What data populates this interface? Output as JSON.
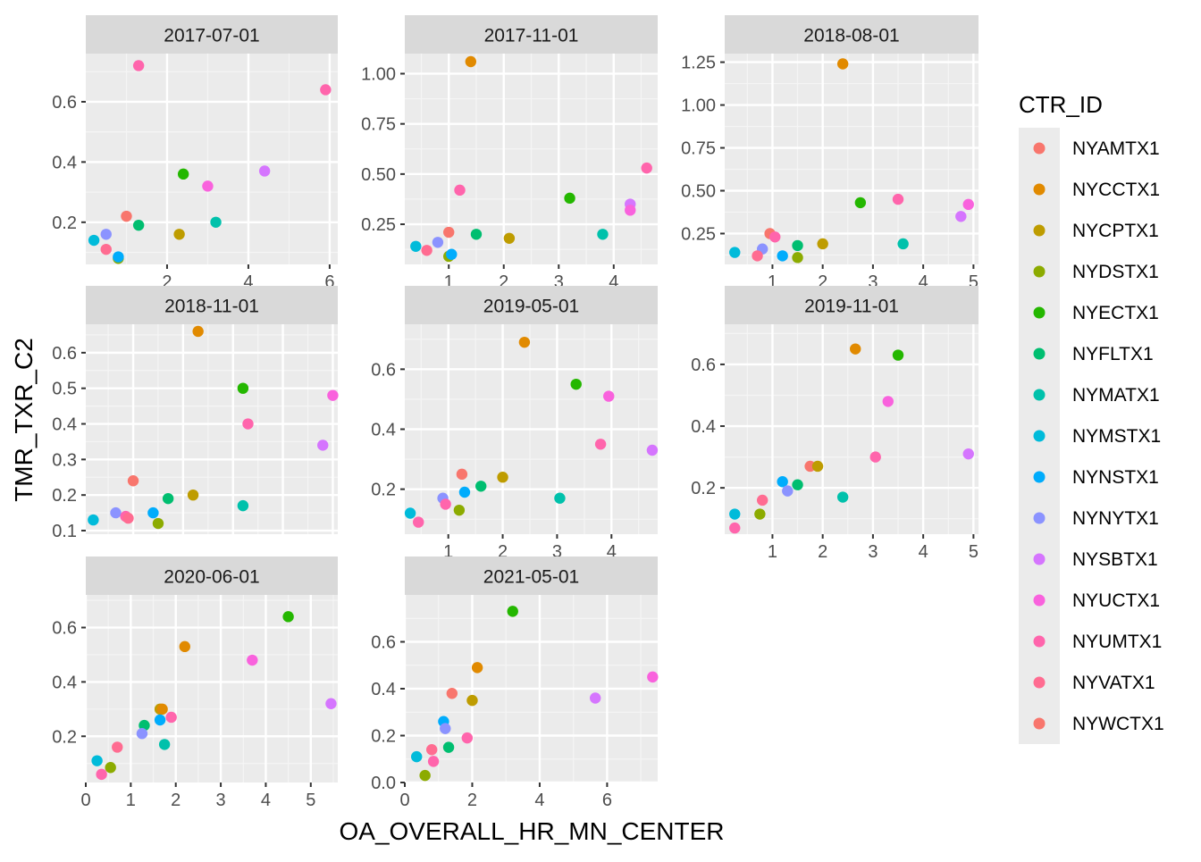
{
  "chart_data": {
    "type": "scatter",
    "xlabel": "OA_OVERALL_HR_MN_CENTER",
    "ylabel": "TMR_TXR_C2",
    "grid": true,
    "legend": {
      "title": "CTR_ID",
      "placement": "right",
      "entries": [
        {
          "id": "NYAMTX1",
          "color": "#F8766D"
        },
        {
          "id": "NYCCTX1",
          "color": "#E18A00"
        },
        {
          "id": "NYCPTX1",
          "color": "#BE9C00"
        },
        {
          "id": "NYDSTX1",
          "color": "#8CAB00"
        },
        {
          "id": "NYECTX1",
          "color": "#24B700"
        },
        {
          "id": "NYFLTX1",
          "color": "#00BE70"
        },
        {
          "id": "NYMATX1",
          "color": "#00C1AB"
        },
        {
          "id": "NYMSTX1",
          "color": "#00BBDA"
        },
        {
          "id": "NYNSTX1",
          "color": "#00ACFC"
        },
        {
          "id": "NYNYTX1",
          "color": "#8B93FF"
        },
        {
          "id": "NYSBTX1",
          "color": "#D575FE"
        },
        {
          "id": "NYUCTX1",
          "color": "#F962DD"
        },
        {
          "id": "NYUMTX1",
          "color": "#FF65AC"
        },
        {
          "id": "NYVATX1",
          "color": "#FF6C91"
        },
        {
          "id": "NYWCTX1",
          "color": "#F8766D"
        }
      ]
    },
    "facets": [
      {
        "label": "2017-07-01",
        "xlim": [
          0,
          6.2
        ],
        "ylim": [
          0.06,
          0.76
        ],
        "xticks": [
          2,
          4,
          6
        ],
        "xtick_labels": [
          "2",
          "4",
          "6"
        ],
        "yticks": [
          0.2,
          0.4,
          0.6
        ],
        "ytick_labels": [
          "0.2",
          "0.4",
          "0.6"
        ],
        "points": [
          {
            "x": 1.3,
            "y": 0.72,
            "c": "NYUMTX1"
          },
          {
            "x": 5.9,
            "y": 0.64,
            "c": "NYUMTX1"
          },
          {
            "x": 4.4,
            "y": 0.37,
            "c": "NYSBTX1"
          },
          {
            "x": 2.4,
            "y": 0.36,
            "c": "NYECTX1"
          },
          {
            "x": 3.0,
            "y": 0.32,
            "c": "NYUCTX1"
          },
          {
            "x": 1.0,
            "y": 0.22,
            "c": "NYAMTX1"
          },
          {
            "x": 3.2,
            "y": 0.2,
            "c": "NYMATX1"
          },
          {
            "x": 1.3,
            "y": 0.19,
            "c": "NYFLTX1"
          },
          {
            "x": 0.5,
            "y": 0.16,
            "c": "NYNYTX1"
          },
          {
            "x": 2.3,
            "y": 0.16,
            "c": "NYCPTX1"
          },
          {
            "x": 0.2,
            "y": 0.14,
            "c": "NYMSTX1"
          },
          {
            "x": 0.5,
            "y": 0.11,
            "c": "NYVATX1"
          },
          {
            "x": 0.8,
            "y": 0.08,
            "c": "NYDSTX1"
          },
          {
            "x": 0.8,
            "y": 0.085,
            "c": "NYNSTX1"
          }
        ]
      },
      {
        "label": "2017-11-01",
        "xlim": [
          0.2,
          4.8
        ],
        "ylim": [
          0.05,
          1.1
        ],
        "xticks": [
          1,
          2,
          3,
          4
        ],
        "xtick_labels": [
          "1",
          "2",
          "3",
          "4"
        ],
        "yticks": [
          0.25,
          0.5,
          0.75,
          1.0
        ],
        "ytick_labels": [
          "0.25",
          "0.50",
          "0.75",
          "1.00"
        ],
        "points": [
          {
            "x": 1.4,
            "y": 1.06,
            "c": "NYCCTX1"
          },
          {
            "x": 4.6,
            "y": 0.53,
            "c": "NYUMTX1"
          },
          {
            "x": 1.2,
            "y": 0.42,
            "c": "NYUMTX1"
          },
          {
            "x": 3.2,
            "y": 0.38,
            "c": "NYECTX1"
          },
          {
            "x": 4.3,
            "y": 0.35,
            "c": "NYSBTX1"
          },
          {
            "x": 4.3,
            "y": 0.32,
            "c": "NYUCTX1"
          },
          {
            "x": 1.0,
            "y": 0.21,
            "c": "NYAMTX1"
          },
          {
            "x": 1.5,
            "y": 0.2,
            "c": "NYFLTX1"
          },
          {
            "x": 3.8,
            "y": 0.2,
            "c": "NYMATX1"
          },
          {
            "x": 2.1,
            "y": 0.18,
            "c": "NYCPTX1"
          },
          {
            "x": 0.8,
            "y": 0.16,
            "c": "NYNYTX1"
          },
          {
            "x": 0.4,
            "y": 0.14,
            "c": "NYMSTX1"
          },
          {
            "x": 0.6,
            "y": 0.12,
            "c": "NYVATX1"
          },
          {
            "x": 1.0,
            "y": 0.09,
            "c": "NYDSTX1"
          },
          {
            "x": 1.05,
            "y": 0.1,
            "c": "NYNSTX1"
          }
        ]
      },
      {
        "label": "2018-08-01",
        "xlim": [
          0.05,
          5.1
        ],
        "ylim": [
          0.07,
          1.3
        ],
        "xticks": [
          1,
          2,
          3,
          4,
          5
        ],
        "xtick_labels": [
          "1",
          "2",
          "3",
          "4",
          "5"
        ],
        "yticks": [
          0.25,
          0.5,
          0.75,
          1.0,
          1.25
        ],
        "ytick_labels": [
          "0.25",
          "0.50",
          "0.75",
          "1.00",
          "1.25"
        ],
        "points": [
          {
            "x": 2.4,
            "y": 1.24,
            "c": "NYCCTX1"
          },
          {
            "x": 3.5,
            "y": 0.45,
            "c": "NYUMTX1"
          },
          {
            "x": 2.75,
            "y": 0.43,
            "c": "NYECTX1"
          },
          {
            "x": 4.9,
            "y": 0.42,
            "c": "NYUCTX1"
          },
          {
            "x": 4.75,
            "y": 0.35,
            "c": "NYSBTX1"
          },
          {
            "x": 0.95,
            "y": 0.25,
            "c": "NYAMTX1"
          },
          {
            "x": 1.05,
            "y": 0.23,
            "c": "NYUMTX1"
          },
          {
            "x": 2.0,
            "y": 0.19,
            "c": "NYCPTX1"
          },
          {
            "x": 3.6,
            "y": 0.19,
            "c": "NYMATX1"
          },
          {
            "x": 1.5,
            "y": 0.18,
            "c": "NYFLTX1"
          },
          {
            "x": 0.8,
            "y": 0.16,
            "c": "NYNYTX1"
          },
          {
            "x": 0.25,
            "y": 0.14,
            "c": "NYMSTX1"
          },
          {
            "x": 0.7,
            "y": 0.12,
            "c": "NYVATX1"
          },
          {
            "x": 1.2,
            "y": 0.12,
            "c": "NYNSTX1"
          },
          {
            "x": 1.5,
            "y": 0.11,
            "c": "NYDSTX1"
          }
        ]
      },
      {
        "label": "2018-11-01",
        "xlim": [
          0.05,
          5.1
        ],
        "ylim": [
          0.09,
          0.68
        ],
        "xticks": [
          1,
          2,
          3,
          4,
          5
        ],
        "xtick_labels": [
          "1",
          "2",
          "3",
          "4",
          "5"
        ],
        "yticks": [
          0.1,
          0.2,
          0.3,
          0.4,
          0.5,
          0.6
        ],
        "ytick_labels": [
          "0.1",
          "0.2",
          "0.3",
          "0.4",
          "0.5",
          "0.6"
        ],
        "points": [
          {
            "x": 2.3,
            "y": 0.66,
            "c": "NYCCTX1"
          },
          {
            "x": 3.2,
            "y": 0.5,
            "c": "NYECTX1"
          },
          {
            "x": 5.0,
            "y": 0.48,
            "c": "NYUCTX1"
          },
          {
            "x": 3.3,
            "y": 0.4,
            "c": "NYUMTX1"
          },
          {
            "x": 4.8,
            "y": 0.34,
            "c": "NYSBTX1"
          },
          {
            "x": 1.0,
            "y": 0.24,
            "c": "NYAMTX1"
          },
          {
            "x": 2.2,
            "y": 0.2,
            "c": "NYCPTX1"
          },
          {
            "x": 1.7,
            "y": 0.19,
            "c": "NYFLTX1"
          },
          {
            "x": 3.2,
            "y": 0.17,
            "c": "NYMATX1"
          },
          {
            "x": 0.65,
            "y": 0.15,
            "c": "NYNYTX1"
          },
          {
            "x": 1.4,
            "y": 0.15,
            "c": "NYNSTX1"
          },
          {
            "x": 0.85,
            "y": 0.14,
            "c": "NYUMTX1"
          },
          {
            "x": 0.9,
            "y": 0.135,
            "c": "NYVATX1"
          },
          {
            "x": 0.2,
            "y": 0.13,
            "c": "NYMSTX1"
          },
          {
            "x": 1.5,
            "y": 0.12,
            "c": "NYDSTX1"
          }
        ]
      },
      {
        "label": "2019-05-01",
        "xlim": [
          0.2,
          4.85
        ],
        "ylim": [
          0.05,
          0.75
        ],
        "xticks": [
          1,
          2,
          3,
          4
        ],
        "xtick_labels": [
          "1",
          "2",
          "3",
          "4"
        ],
        "yticks": [
          0.2,
          0.4,
          0.6
        ],
        "ytick_labels": [
          "0.2",
          "0.4",
          "0.6"
        ],
        "points": [
          {
            "x": 2.4,
            "y": 0.69,
            "c": "NYCCTX1"
          },
          {
            "x": 3.35,
            "y": 0.55,
            "c": "NYECTX1"
          },
          {
            "x": 3.95,
            "y": 0.51,
            "c": "NYUCTX1"
          },
          {
            "x": 3.8,
            "y": 0.35,
            "c": "NYUMTX1"
          },
          {
            "x": 4.75,
            "y": 0.33,
            "c": "NYSBTX1"
          },
          {
            "x": 1.25,
            "y": 0.25,
            "c": "NYAMTX1"
          },
          {
            "x": 2.0,
            "y": 0.24,
            "c": "NYCPTX1"
          },
          {
            "x": 1.6,
            "y": 0.21,
            "c": "NYFLTX1"
          },
          {
            "x": 1.3,
            "y": 0.19,
            "c": "NYNSTX1"
          },
          {
            "x": 0.9,
            "y": 0.17,
            "c": "NYNYTX1"
          },
          {
            "x": 3.05,
            "y": 0.17,
            "c": "NYMATX1"
          },
          {
            "x": 0.95,
            "y": 0.15,
            "c": "NYUMTX1"
          },
          {
            "x": 1.2,
            "y": 0.13,
            "c": "NYDSTX1"
          },
          {
            "x": 0.3,
            "y": 0.12,
            "c": "NYMSTX1"
          },
          {
            "x": 0.45,
            "y": 0.09,
            "c": "NYUMTX1"
          }
        ]
      },
      {
        "label": "2019-11-01",
        "xlim": [
          0.05,
          5.1
        ],
        "ylim": [
          0.05,
          0.73
        ],
        "xticks": [
          1,
          2,
          3,
          4,
          5
        ],
        "xtick_labels": [
          "1",
          "2",
          "3",
          "4",
          "5"
        ],
        "yticks": [
          0.2,
          0.4,
          0.6
        ],
        "ytick_labels": [
          "0.2",
          "0.4",
          "0.6"
        ],
        "points": [
          {
            "x": 2.65,
            "y": 0.65,
            "c": "NYCCTX1"
          },
          {
            "x": 3.5,
            "y": 0.63,
            "c": "NYECTX1"
          },
          {
            "x": 3.3,
            "y": 0.48,
            "c": "NYUCTX1"
          },
          {
            "x": 4.9,
            "y": 0.31,
            "c": "NYSBTX1"
          },
          {
            "x": 3.05,
            "y": 0.3,
            "c": "NYUMTX1"
          },
          {
            "x": 1.75,
            "y": 0.27,
            "c": "NYAMTX1"
          },
          {
            "x": 1.9,
            "y": 0.27,
            "c": "NYCPTX1"
          },
          {
            "x": 1.2,
            "y": 0.22,
            "c": "NYNSTX1"
          },
          {
            "x": 1.5,
            "y": 0.21,
            "c": "NYFLTX1"
          },
          {
            "x": 1.3,
            "y": 0.19,
            "c": "NYNYTX1"
          },
          {
            "x": 2.4,
            "y": 0.17,
            "c": "NYMATX1"
          },
          {
            "x": 0.8,
            "y": 0.16,
            "c": "NYVATX1"
          },
          {
            "x": 0.25,
            "y": 0.115,
            "c": "NYMSTX1"
          },
          {
            "x": 0.75,
            "y": 0.115,
            "c": "NYDSTX1"
          },
          {
            "x": 0.25,
            "y": 0.07,
            "c": "NYUMTX1"
          }
        ]
      },
      {
        "label": "2020-06-01",
        "xlim": [
          0,
          5.6
        ],
        "ylim": [
          0.03,
          0.72
        ],
        "xticks": [
          0,
          1,
          2,
          3,
          4,
          5
        ],
        "xtick_labels": [
          "0",
          "1",
          "2",
          "3",
          "4",
          "5"
        ],
        "yticks": [
          0.2,
          0.4,
          0.6
        ],
        "ytick_labels": [
          "0.2",
          "0.4",
          "0.6"
        ],
        "points": [
          {
            "x": 4.5,
            "y": 0.64,
            "c": "NYECTX1"
          },
          {
            "x": 2.2,
            "y": 0.53,
            "c": "NYCCTX1"
          },
          {
            "x": 3.7,
            "y": 0.48,
            "c": "NYUCTX1"
          },
          {
            "x": 5.45,
            "y": 0.32,
            "c": "NYSBTX1"
          },
          {
            "x": 1.65,
            "y": 0.3,
            "c": "NYCPTX1"
          },
          {
            "x": 1.7,
            "y": 0.3,
            "c": "NYCCTX1"
          },
          {
            "x": 1.9,
            "y": 0.27,
            "c": "NYUMTX1"
          },
          {
            "x": 1.65,
            "y": 0.26,
            "c": "NYNSTX1"
          },
          {
            "x": 1.3,
            "y": 0.24,
            "c": "NYFLTX1"
          },
          {
            "x": 1.25,
            "y": 0.21,
            "c": "NYNYTX1"
          },
          {
            "x": 1.75,
            "y": 0.17,
            "c": "NYMATX1"
          },
          {
            "x": 0.7,
            "y": 0.16,
            "c": "NYVATX1"
          },
          {
            "x": 0.25,
            "y": 0.11,
            "c": "NYMSTX1"
          },
          {
            "x": 0.55,
            "y": 0.085,
            "c": "NYDSTX1"
          },
          {
            "x": 0.35,
            "y": 0.06,
            "c": "NYUMTX1"
          }
        ]
      },
      {
        "label": "2021-05-01",
        "xlim": [
          0,
          7.5
        ],
        "ylim": [
          0,
          0.8
        ],
        "xticks": [
          0,
          2,
          4,
          6
        ],
        "xtick_labels": [
          "0",
          "2",
          "4",
          "6"
        ],
        "yticks": [
          0,
          0.2,
          0.4,
          0.6
        ],
        "ytick_labels": [
          "0.0",
          "0.2",
          "0.4",
          "0.6"
        ],
        "points": [
          {
            "x": 3.2,
            "y": 0.73,
            "c": "NYECTX1"
          },
          {
            "x": 2.15,
            "y": 0.49,
            "c": "NYCCTX1"
          },
          {
            "x": 7.35,
            "y": 0.45,
            "c": "NYUCTX1"
          },
          {
            "x": 1.4,
            "y": 0.38,
            "c": "NYAMTX1"
          },
          {
            "x": 5.65,
            "y": 0.36,
            "c": "NYSBTX1"
          },
          {
            "x": 2.0,
            "y": 0.35,
            "c": "NYCPTX1"
          },
          {
            "x": 1.15,
            "y": 0.26,
            "c": "NYNSTX1"
          },
          {
            "x": 1.2,
            "y": 0.23,
            "c": "NYNYTX1"
          },
          {
            "x": 1.85,
            "y": 0.19,
            "c": "NYUMTX1"
          },
          {
            "x": 1.3,
            "y": 0.15,
            "c": "NYFLTX1"
          },
          {
            "x": 0.8,
            "y": 0.14,
            "c": "NYVATX1"
          },
          {
            "x": 0.35,
            "y": 0.11,
            "c": "NYMSTX1"
          },
          {
            "x": 0.85,
            "y": 0.09,
            "c": "NYUMTX1"
          },
          {
            "x": 0.6,
            "y": 0.03,
            "c": "NYDSTX1"
          }
        ]
      }
    ]
  }
}
